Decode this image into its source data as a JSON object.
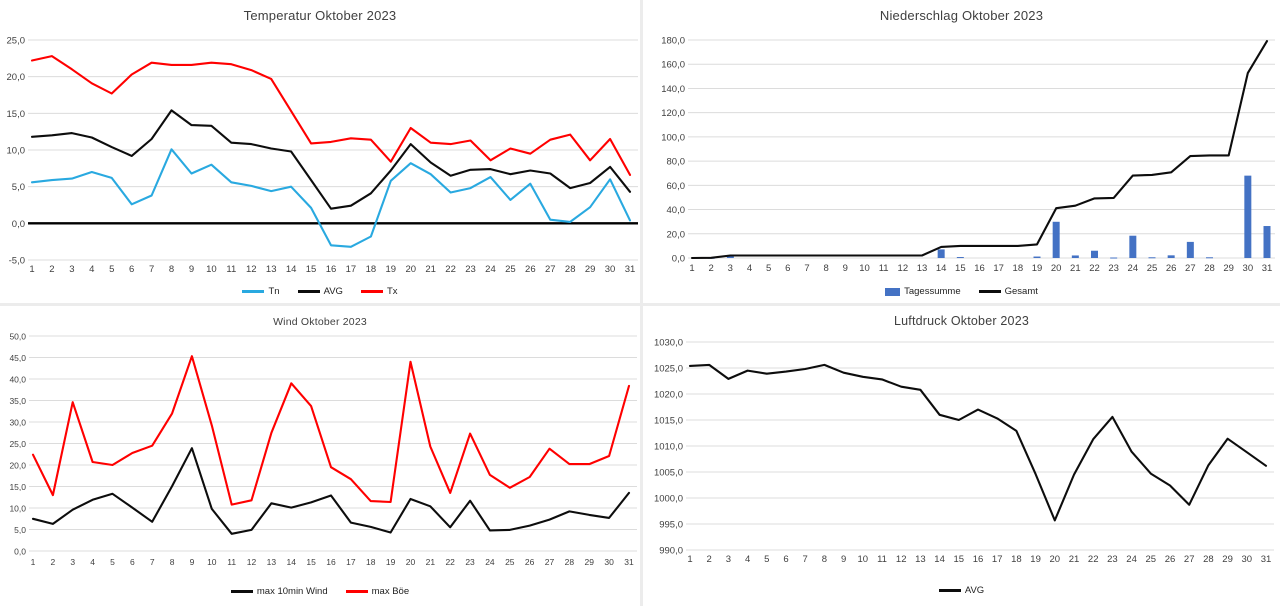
{
  "chart_data": [
    {
      "id": "temperatur",
      "type": "line",
      "title": "Temperatur Oktober 2023",
      "categories": [
        1,
        2,
        3,
        4,
        5,
        6,
        7,
        8,
        9,
        10,
        11,
        12,
        13,
        14,
        15,
        16,
        17,
        18,
        19,
        20,
        21,
        22,
        23,
        24,
        25,
        26,
        27,
        28,
        29,
        30,
        31
      ],
      "ylim": [
        -5,
        25
      ],
      "ystep": 5,
      "ytick_labels": [
        "25,0",
        "20,0",
        "15,0",
        "10,0",
        "5,0",
        "0,0",
        "-5,0"
      ],
      "grid": true,
      "zero_axis": true,
      "legend_position": "bottom",
      "series": [
        {
          "name": "Tn",
          "color": "#29A9E0",
          "values": [
            5.6,
            5.9,
            6.1,
            7.0,
            6.2,
            2.6,
            3.8,
            10.1,
            6.8,
            8.0,
            5.6,
            5.1,
            4.4,
            5.0,
            2.1,
            -3.0,
            -3.2,
            -1.8,
            5.8,
            8.2,
            6.7,
            4.2,
            4.8,
            6.3,
            3.2,
            5.4,
            0.5,
            0.2,
            2.2,
            6.0,
            0.4
          ]
        },
        {
          "name": "AVG",
          "color": "#0d0d0d",
          "values": [
            11.8,
            12.0,
            12.3,
            11.7,
            10.4,
            9.2,
            11.5,
            15.4,
            13.4,
            13.3,
            11.0,
            10.8,
            10.2,
            9.8,
            5.9,
            2.0,
            2.4,
            4.1,
            7.2,
            10.8,
            8.3,
            6.5,
            7.3,
            7.4,
            6.7,
            7.2,
            6.8,
            4.8,
            5.5,
            7.7,
            4.3
          ]
        },
        {
          "name": "Tx",
          "color": "#FF0000",
          "values": [
            22.2,
            22.8,
            21.0,
            19.1,
            17.7,
            20.3,
            21.9,
            21.6,
            21.6,
            21.9,
            21.7,
            20.9,
            19.7,
            15.3,
            10.9,
            11.1,
            11.6,
            11.4,
            8.4,
            13.0,
            11.0,
            10.8,
            11.3,
            8.6,
            10.2,
            9.5,
            11.4,
            12.1,
            8.6,
            11.5,
            6.6
          ]
        }
      ]
    },
    {
      "id": "niederschlag",
      "type": "bar+line",
      "title": "Niederschlag Oktober 2023",
      "categories": [
        1,
        2,
        3,
        4,
        5,
        6,
        7,
        8,
        9,
        10,
        11,
        12,
        13,
        14,
        15,
        16,
        17,
        18,
        19,
        20,
        21,
        22,
        23,
        24,
        25,
        26,
        27,
        28,
        29,
        30,
        31
      ],
      "ylim": [
        0,
        180
      ],
      "ystep": 20,
      "ytick_labels": [
        "180,0",
        "160,0",
        "140,0",
        "120,0",
        "100,0",
        "80,0",
        "60,0",
        "40,0",
        "20,0",
        "0,0"
      ],
      "grid": true,
      "zero_axis": false,
      "legend_position": "bottom",
      "series": [
        {
          "name": "Tagessumme",
          "type": "bar",
          "color": "#4472C4",
          "values": [
            0,
            0.2,
            1.9,
            0,
            0,
            0,
            0,
            0,
            0,
            0,
            0,
            0,
            0,
            7.1,
            0.8,
            0,
            0,
            0,
            1.2,
            29.9,
            2.1,
            6.0,
            0.4,
            18.4,
            0.6,
            2.2,
            13.3,
            0.6,
            0,
            68.0,
            26.4
          ]
        },
        {
          "name": "Gesamt",
          "type": "line",
          "color": "#0d0d0d",
          "values": [
            0,
            0.2,
            2.1,
            2.1,
            2.1,
            2.1,
            2.1,
            2.1,
            2.1,
            2.1,
            2.1,
            2.1,
            2.1,
            9.2,
            10.0,
            10.0,
            10.0,
            10.0,
            11.2,
            41.1,
            43.2,
            49.2,
            49.6,
            68.0,
            68.6,
            70.8,
            84.1,
            84.7,
            84.7,
            152.7,
            179.1
          ]
        }
      ]
    },
    {
      "id": "wind",
      "type": "line",
      "title": "Wind Oktober 2023",
      "categories": [
        1,
        2,
        3,
        4,
        5,
        6,
        7,
        8,
        9,
        10,
        11,
        12,
        13,
        14,
        15,
        16,
        17,
        18,
        19,
        20,
        21,
        22,
        23,
        24,
        25,
        26,
        27,
        28,
        29,
        30,
        31
      ],
      "ylim": [
        0,
        50
      ],
      "ystep": 5,
      "ytick_labels": [
        "50,0",
        "45,0",
        "40,0",
        "35,0",
        "30,0",
        "25,0",
        "20,0",
        "15,0",
        "10,0",
        "5,0",
        "0,0"
      ],
      "grid": true,
      "zero_axis": false,
      "legend_position": "bottom",
      "series": [
        {
          "name": "max 10min Wind",
          "color": "#0d0d0d",
          "values": [
            7.5,
            6.3,
            9.6,
            11.9,
            13.3,
            10.1,
            6.8,
            15.1,
            23.9,
            9.8,
            4.0,
            4.9,
            11.1,
            10.1,
            11.3,
            12.9,
            6.6,
            5.6,
            4.3,
            12.1,
            10.4,
            5.5,
            11.7,
            4.8,
            4.9,
            5.9,
            7.3,
            9.2,
            8.4,
            7.7,
            13.5
          ]
        },
        {
          "name": "max Böe",
          "color": "#FF0000",
          "values": [
            22.4,
            13.0,
            34.6,
            20.7,
            20.0,
            22.8,
            24.5,
            32.0,
            45.3,
            29.2,
            10.8,
            11.8,
            27.5,
            39.0,
            33.7,
            19.5,
            16.7,
            11.6,
            11.4,
            44.0,
            24.3,
            13.5,
            27.3,
            17.7,
            14.7,
            17.2,
            23.8,
            20.2,
            20.2,
            22.1,
            38.4
          ]
        }
      ]
    },
    {
      "id": "luftdruck",
      "type": "line",
      "title": "Luftdruck Oktober 2023",
      "categories": [
        1,
        2,
        3,
        4,
        5,
        6,
        7,
        8,
        9,
        10,
        11,
        12,
        13,
        14,
        15,
        16,
        17,
        18,
        19,
        20,
        21,
        22,
        23,
        24,
        25,
        26,
        27,
        28,
        29,
        30,
        31
      ],
      "ylim": [
        990,
        1030
      ],
      "ystep": 5,
      "ytick_labels": [
        "1030,0",
        "1025,0",
        "1020,0",
        "1015,0",
        "1010,0",
        "1005,0",
        "1000,0",
        "995,0",
        "990,0"
      ],
      "grid": true,
      "zero_axis": false,
      "legend_position": "bottom",
      "series": [
        {
          "name": "AVG",
          "color": "#0d0d0d",
          "values": [
            1025.4,
            1025.6,
            1022.9,
            1024.5,
            1023.9,
            1024.3,
            1024.8,
            1025.6,
            1024.1,
            1023.3,
            1022.8,
            1021.4,
            1020.8,
            1016.0,
            1015.0,
            1017.0,
            1015.3,
            1012.9,
            1004.6,
            995.7,
            1004.5,
            1011.3,
            1015.6,
            1008.9,
            1004.7,
            1002.4,
            998.7,
            1006.3,
            1011.4,
            1008.8,
            1006.2
          ]
        }
      ]
    }
  ]
}
